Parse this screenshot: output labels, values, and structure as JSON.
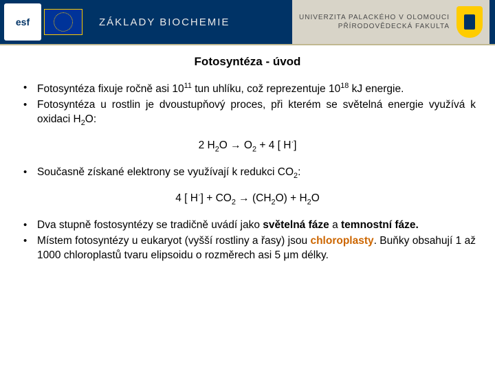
{
  "header": {
    "esf_label": "esf",
    "course_title": "ZÁKLADY BIOCHEMIE",
    "university_line1": "UNIVERZITA PALACKÉHO V OLOMOUCI",
    "university_line2": "PŘÍRODOVĚDECKÁ FAKULTA",
    "colors": {
      "header_bg": "#003366",
      "header_right_bg": "#d8d4c8",
      "accent_line": "#c0b890",
      "shield": "#ffcc00",
      "eu_blue": "#003399"
    }
  },
  "slide": {
    "title": "Fotosyntéza - úvod",
    "bullets_group1": [
      "Fotosyntéza fixuje ročně asi 10^{11} tun uhlíku, což reprezentuje 10^{18} kJ energie.",
      "Fotosyntéza u rostlin je dvoustupňový proces, při kterém se světelná energie využívá k oxidaci H_{2}O:"
    ],
    "equation1": "2 H_{2}O → O_{2} + 4 [ H· ]",
    "bullets_group2": [
      "Současně získané elektrony se využívají k redukci CO_{2}:"
    ],
    "equation2": "4 [ H· ] + CO_{2} → (CH_{2}O) + H_{2}O",
    "bullets_group3": [
      "Dva stupně fostosyntézy se tradičně uvádí jako **světelná fáze** a **temnostní fáze**.",
      "Místem fotosyntézy u eukaryot (vyšší rostliny a řasy) jsou ##chloroplasty##. Buňky obsahují 1 až 1000 chloroplastů tvaru elipsoidu o rozměrech asi 5 μm délky."
    ],
    "highlight_color": "#cc6600"
  }
}
